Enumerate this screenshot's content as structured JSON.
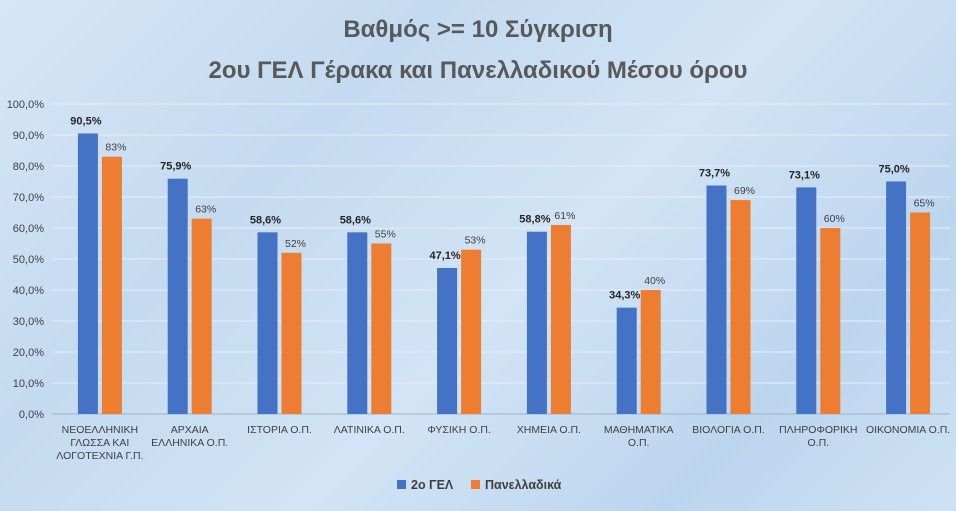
{
  "chart_data": {
    "type": "bar",
    "title": [
      "Βαθμός >= 10 Σύγκριση",
      "2ου ΓΕΛ Γέρακα και Πανελλαδικού Μέσου όρου"
    ],
    "categories": [
      [
        "ΝΕΟΕΛΛΗΝΙΚΗ",
        "ΓΛΩΣΣΑ ΚΑΙ",
        "ΛΟΓΟΤΕΧΝΙΑ Γ.Π."
      ],
      [
        "ΑΡΧΑΙΑ",
        "ΕΛΛΗΝΙΚΑ Ο.Π."
      ],
      [
        "ΙΣΤΟΡΙΑ Ο.Π."
      ],
      [
        "ΛΑΤΙΝΙΚΑ Ο.Π."
      ],
      [
        "ΦΥΣΙΚΗ Ο.Π."
      ],
      [
        "ΧΗΜΕΙΑ Ο.Π."
      ],
      [
        "ΜΑΘΗΜΑΤΙΚΑ",
        "Ο.Π."
      ],
      [
        "ΒΙΟΛΟΓΙΑ Ο.Π."
      ],
      [
        "ΠΛΗΡΟΦΟΡΙΚΗ",
        "Ο.Π."
      ],
      [
        "ΟΙΚΟΝΟΜΙΑ Ο.Π."
      ]
    ],
    "series": [
      {
        "name": "2ο ΓΕΛ",
        "color": "#4472C4",
        "values": [
          90.5,
          75.9,
          58.6,
          58.6,
          47.1,
          58.8,
          34.3,
          73.7,
          73.1,
          75.0
        ],
        "labels": [
          "90,5%",
          "75,9%",
          "58,6%",
          "58,6%",
          "47,1%",
          "58,8%",
          "34,3%",
          "73,7%",
          "73,1%",
          "75,0%"
        ]
      },
      {
        "name": "Πανελλαδικά",
        "color": "#ED7D31",
        "values": [
          83,
          63,
          52,
          55,
          53,
          61,
          40,
          69,
          60,
          65
        ],
        "labels": [
          "83%",
          "63%",
          "52%",
          "55%",
          "53%",
          "61%",
          "40%",
          "69%",
          "60%",
          "65%"
        ]
      }
    ],
    "yticks": [
      "0,0%",
      "10,0%",
      "20,0%",
      "30,0%",
      "40,0%",
      "50,0%",
      "60,0%",
      "70,0%",
      "80,0%",
      "90,0%",
      "100,0%"
    ],
    "ylim": [
      0,
      100
    ],
    "grid": true,
    "legend_position": "bottom"
  }
}
